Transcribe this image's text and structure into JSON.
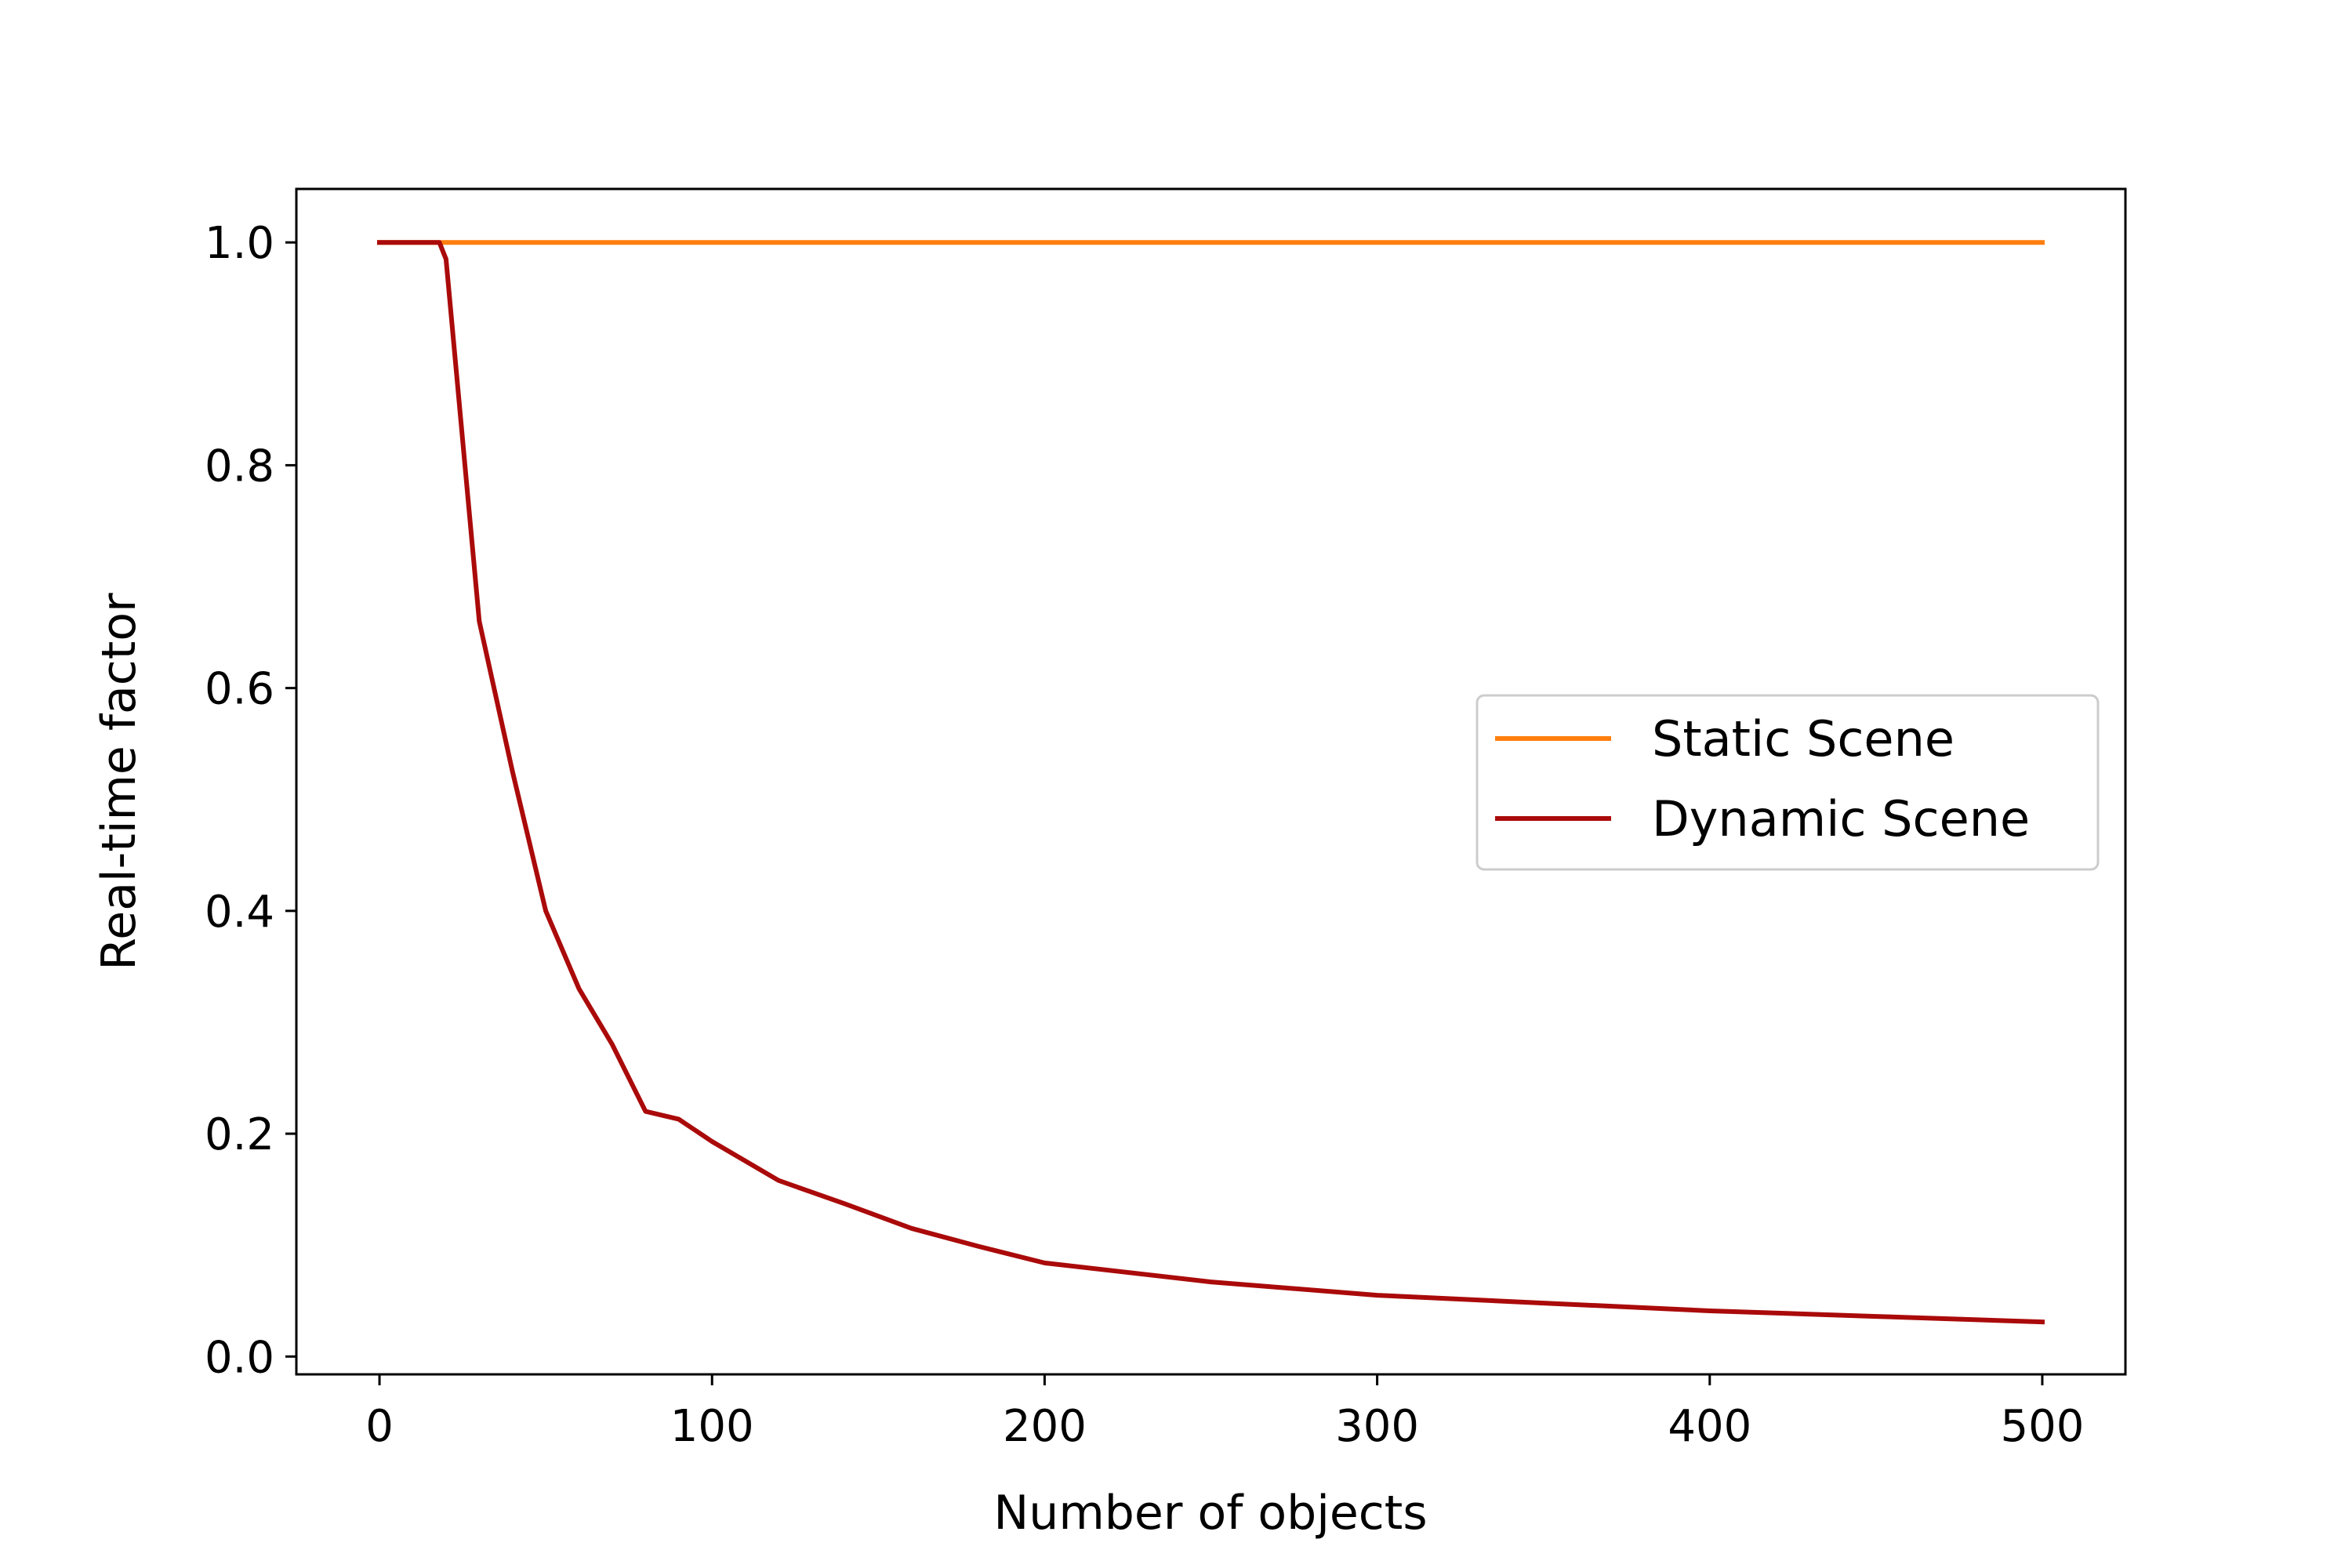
{
  "chart_data": {
    "type": "line",
    "title": "",
    "xlabel": "Number of objects",
    "ylabel": "Real-time factor",
    "xlim": [
      -25,
      525
    ],
    "ylim": [
      -0.016,
      1.048
    ],
    "xticks": [
      0,
      100,
      200,
      300,
      400,
      500
    ],
    "xtick_labels": [
      "0",
      "100",
      "200",
      "300",
      "400",
      "500"
    ],
    "yticks": [
      0.0,
      0.2,
      0.4,
      0.6,
      0.8,
      1.0
    ],
    "ytick_labels": [
      "0.0",
      "0.2",
      "0.4",
      "0.6",
      "0.8",
      "1.0"
    ],
    "grid": false,
    "legend_position": "center-right",
    "series": [
      {
        "name": "Static Scene",
        "color": "#ff7f0e",
        "x": [
          0,
          10,
          20,
          30,
          40,
          50,
          60,
          70,
          80,
          90,
          100,
          120,
          140,
          160,
          180,
          200,
          250,
          300,
          350,
          400,
          450,
          500
        ],
        "y": [
          1.0,
          1.0,
          1.0,
          1.0,
          1.0,
          1.0,
          1.0,
          1.0,
          1.0,
          1.0,
          1.0,
          1.0,
          1.0,
          1.0,
          1.0,
          1.0,
          1.0,
          1.0,
          1.0,
          1.0,
          1.0,
          1.0
        ]
      },
      {
        "name": "Dynamic Scene",
        "color": "#aa0a0a",
        "x": [
          0,
          10,
          18,
          20,
          30,
          40,
          50,
          60,
          70,
          80,
          90,
          100,
          120,
          140,
          160,
          180,
          200,
          250,
          300,
          350,
          400,
          450,
          500
        ],
        "y": [
          1.0,
          1.0,
          1.0,
          0.985,
          0.66,
          0.525,
          0.4,
          0.33,
          0.28,
          0.22,
          0.213,
          0.193,
          0.158,
          0.137,
          0.115,
          0.099,
          0.084,
          0.067,
          0.055,
          0.048,
          0.041,
          0.036,
          0.031
        ]
      }
    ]
  }
}
